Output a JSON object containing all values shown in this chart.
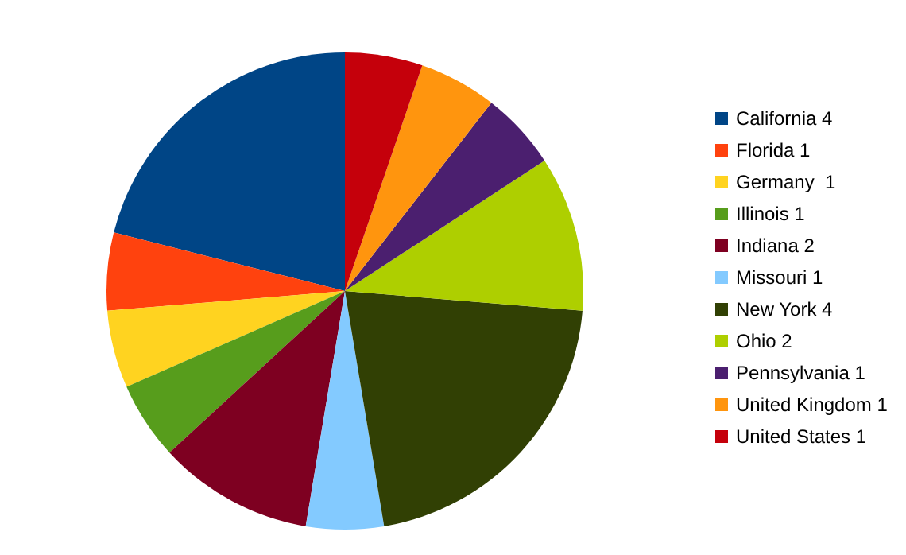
{
  "chart_data": {
    "type": "pie",
    "categories": [
      "California 4",
      "Florida 1",
      "Germany  1",
      "Illinois 1",
      "Indiana 2",
      "Missouri 1",
      "New York 4",
      "Ohio 2",
      "Pennsylvania 1",
      "United Kingdom 1",
      "United States 1"
    ],
    "values": [
      4,
      1,
      1,
      1,
      2,
      1,
      4,
      2,
      1,
      1,
      1
    ],
    "colors": [
      "#004586",
      "#ff420e",
      "#ffd320",
      "#579d1c",
      "#7e0021",
      "#83caff",
      "#314004",
      "#aecf00",
      "#4b1f6f",
      "#ff950e",
      "#c5000b"
    ],
    "legend": "right"
  }
}
